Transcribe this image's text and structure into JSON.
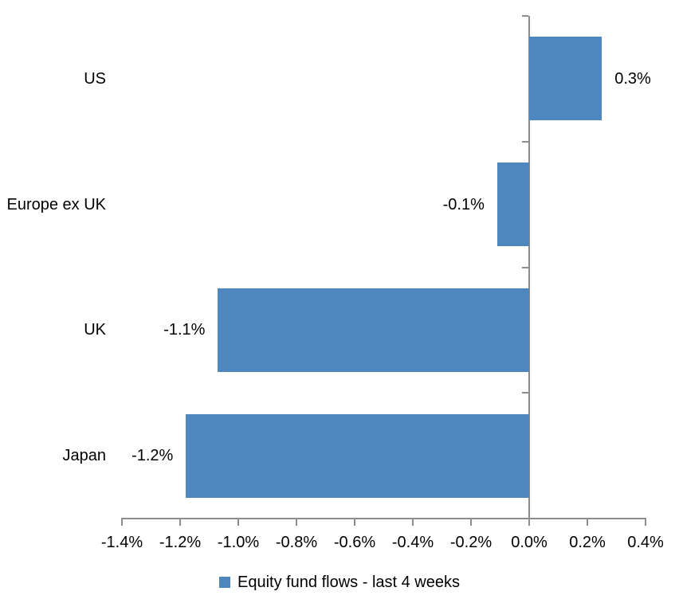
{
  "chart_data": {
    "type": "bar",
    "orientation": "horizontal",
    "title": "",
    "xlabel": "",
    "ylabel": "",
    "categories": [
      "US",
      "Europe ex UK",
      "UK",
      "Japan"
    ],
    "series": [
      {
        "name": "Equity fund flows - last 4 weeks",
        "values": [
          0.3,
          -0.1,
          -1.1,
          -1.2
        ],
        "values_drawn": [
          0.25,
          -0.11,
          -1.07,
          -1.18
        ],
        "data_labels": [
          "0.3%",
          "-0.1%",
          "-1.1%",
          "-1.2%"
        ]
      }
    ],
    "xlim": [
      -1.4,
      0.4
    ],
    "x_tick_values": [
      -1.4,
      -1.2,
      -1.0,
      -0.8,
      -0.6,
      -0.4,
      -0.2,
      0.0,
      0.2,
      0.4
    ],
    "x_tick_labels": [
      "-1.4%",
      "-1.2%",
      "-1.0%",
      "-0.8%",
      "-0.6%",
      "-0.4%",
      "-0.2%",
      "0.0%",
      "0.2%",
      "0.4%"
    ],
    "grid": false,
    "legend": "Equity fund flows - last 4 weeks",
    "legend_position": "bottom",
    "colors": {
      "bar": "#4E86BE",
      "axis": "#8C8C8C",
      "text": "#000000",
      "background": "#FFFFFF"
    }
  }
}
